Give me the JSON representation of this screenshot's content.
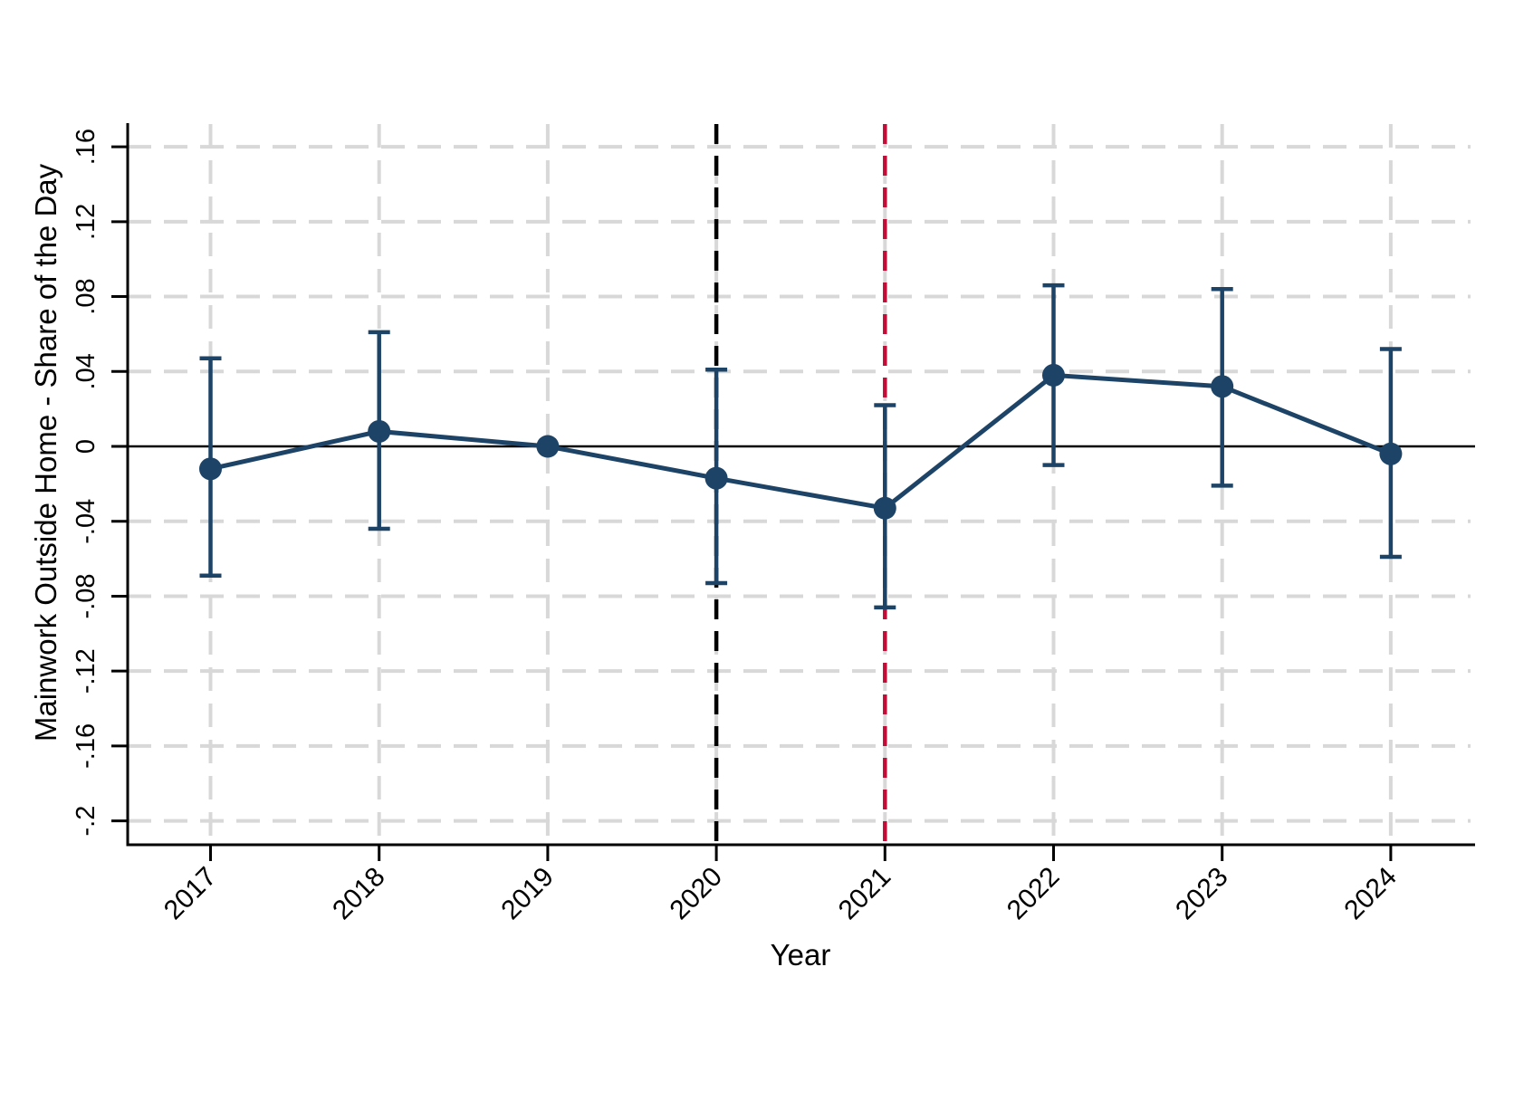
{
  "chart_data": {
    "type": "line",
    "subtype": "coefficient-plot-with-error-bars",
    "title": "",
    "xlabel": "Year",
    "ylabel": "Mainwork Outside Home - Share of the Day",
    "x": [
      2017,
      2018,
      2019,
      2020,
      2021,
      2022,
      2023,
      2024
    ],
    "x_tick_labels": [
      "2017",
      "2018",
      "2019",
      "2020",
      "2021",
      "2022",
      "2023",
      "2024"
    ],
    "y_ticks": [
      0.16,
      0.12,
      0.08,
      0.04,
      0,
      -0.04,
      -0.08,
      -0.12,
      -0.16,
      -0.2
    ],
    "y_tick_labels": [
      ".16",
      ".12",
      ".08",
      ".04",
      "0",
      "-.04",
      "-.08",
      "-.12",
      "-.16",
      "-.2"
    ],
    "xlim": [
      2016.5,
      2024.5
    ],
    "ylim": [
      -0.213,
      0.173
    ],
    "grid": true,
    "legend": "none",
    "series": [
      {
        "name": "point-estimate",
        "values": [
          -0.012,
          0.008,
          0,
          -0.017,
          -0.033,
          0.038,
          0.032,
          -0.004
        ],
        "ci_low": [
          -0.069,
          -0.044,
          null,
          -0.073,
          -0.086,
          -0.01,
          -0.021,
          -0.059
        ],
        "ci_high": [
          0.047,
          0.061,
          null,
          0.041,
          0.022,
          0.086,
          0.084,
          0.052
        ]
      }
    ],
    "reference_x": 2019,
    "zero_line": {
      "y": 0,
      "color": "#000000"
    },
    "vlines": [
      {
        "x": 2020,
        "color": "#000000",
        "style": "dashed"
      },
      {
        "x": 2021,
        "color": "#c10d38",
        "style": "dashed"
      }
    ],
    "colors": {
      "series": "#1d4467",
      "gridline": "#d8d8d8",
      "axis": "#000000"
    }
  }
}
